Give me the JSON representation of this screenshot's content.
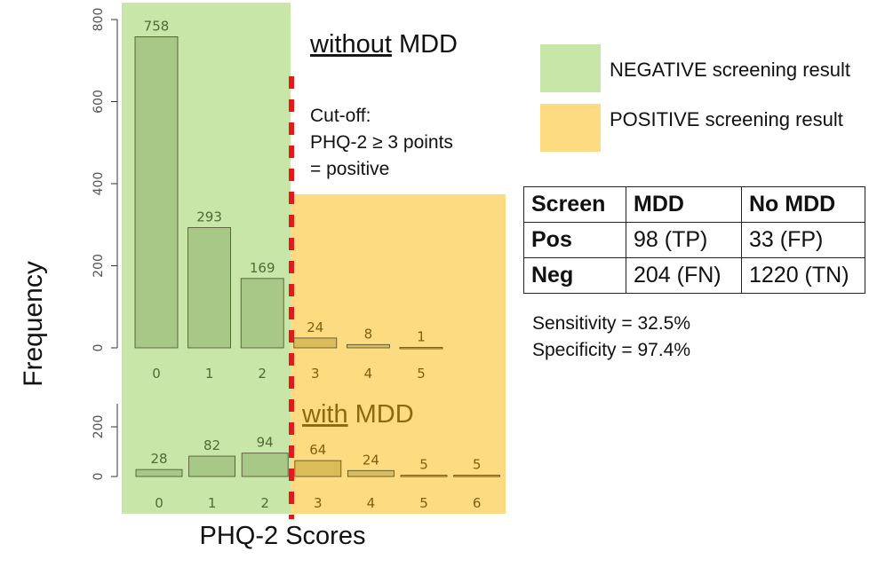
{
  "colors": {
    "negative_region": "#c8e6a8",
    "positive_region": "#fddb80",
    "bar_negative": "#a8c888",
    "bar_positive": "#dcbb5a",
    "label_negative": "#4f6b35",
    "label_positive": "#7d5f10",
    "cutoff_line": "#e81818"
  },
  "chart_data": [
    {
      "type": "bar",
      "panel": "without MDD",
      "title_underlined": "without",
      "title_rest": "MDD",
      "categories": [
        "0",
        "1",
        "2",
        "3",
        "4",
        "5"
      ],
      "values": [
        758,
        293,
        169,
        24,
        8,
        1
      ],
      "ylim": [
        0,
        800
      ],
      "yticks": [
        "0",
        "200",
        "400",
        "600",
        "800"
      ],
      "ylabel": "Frequency",
      "xlabel": ""
    },
    {
      "type": "bar",
      "panel": "with MDD",
      "title_underlined": "with",
      "title_rest": "MDD",
      "categories": [
        "0",
        "1",
        "2",
        "3",
        "4",
        "5",
        "6"
      ],
      "values": [
        28,
        82,
        94,
        64,
        24,
        5,
        5
      ],
      "ylim": [
        0,
        200
      ],
      "yticks": [
        "0",
        "200"
      ],
      "ylabel": "",
      "xlabel": "PHQ-2 Scores"
    }
  ],
  "cutoff_note": {
    "line1": "Cut-off:",
    "line2": "PHQ-2 ≥ 3 points",
    "line3": "= positive"
  },
  "legend": {
    "negative": "NEGATIVE screening result",
    "positive": "POSITIVE screening result"
  },
  "table": {
    "header": [
      "Screen",
      "MDD",
      "No MDD"
    ],
    "rows": [
      [
        "Pos",
        "98 (TP)",
        "33 (FP)"
      ],
      [
        "Neg",
        "204 (FN)",
        "1220 (TN)"
      ]
    ]
  },
  "stats": {
    "sensitivity": "Sensitivity = 32.5%",
    "specificity": "Specificity = 97.4%"
  }
}
